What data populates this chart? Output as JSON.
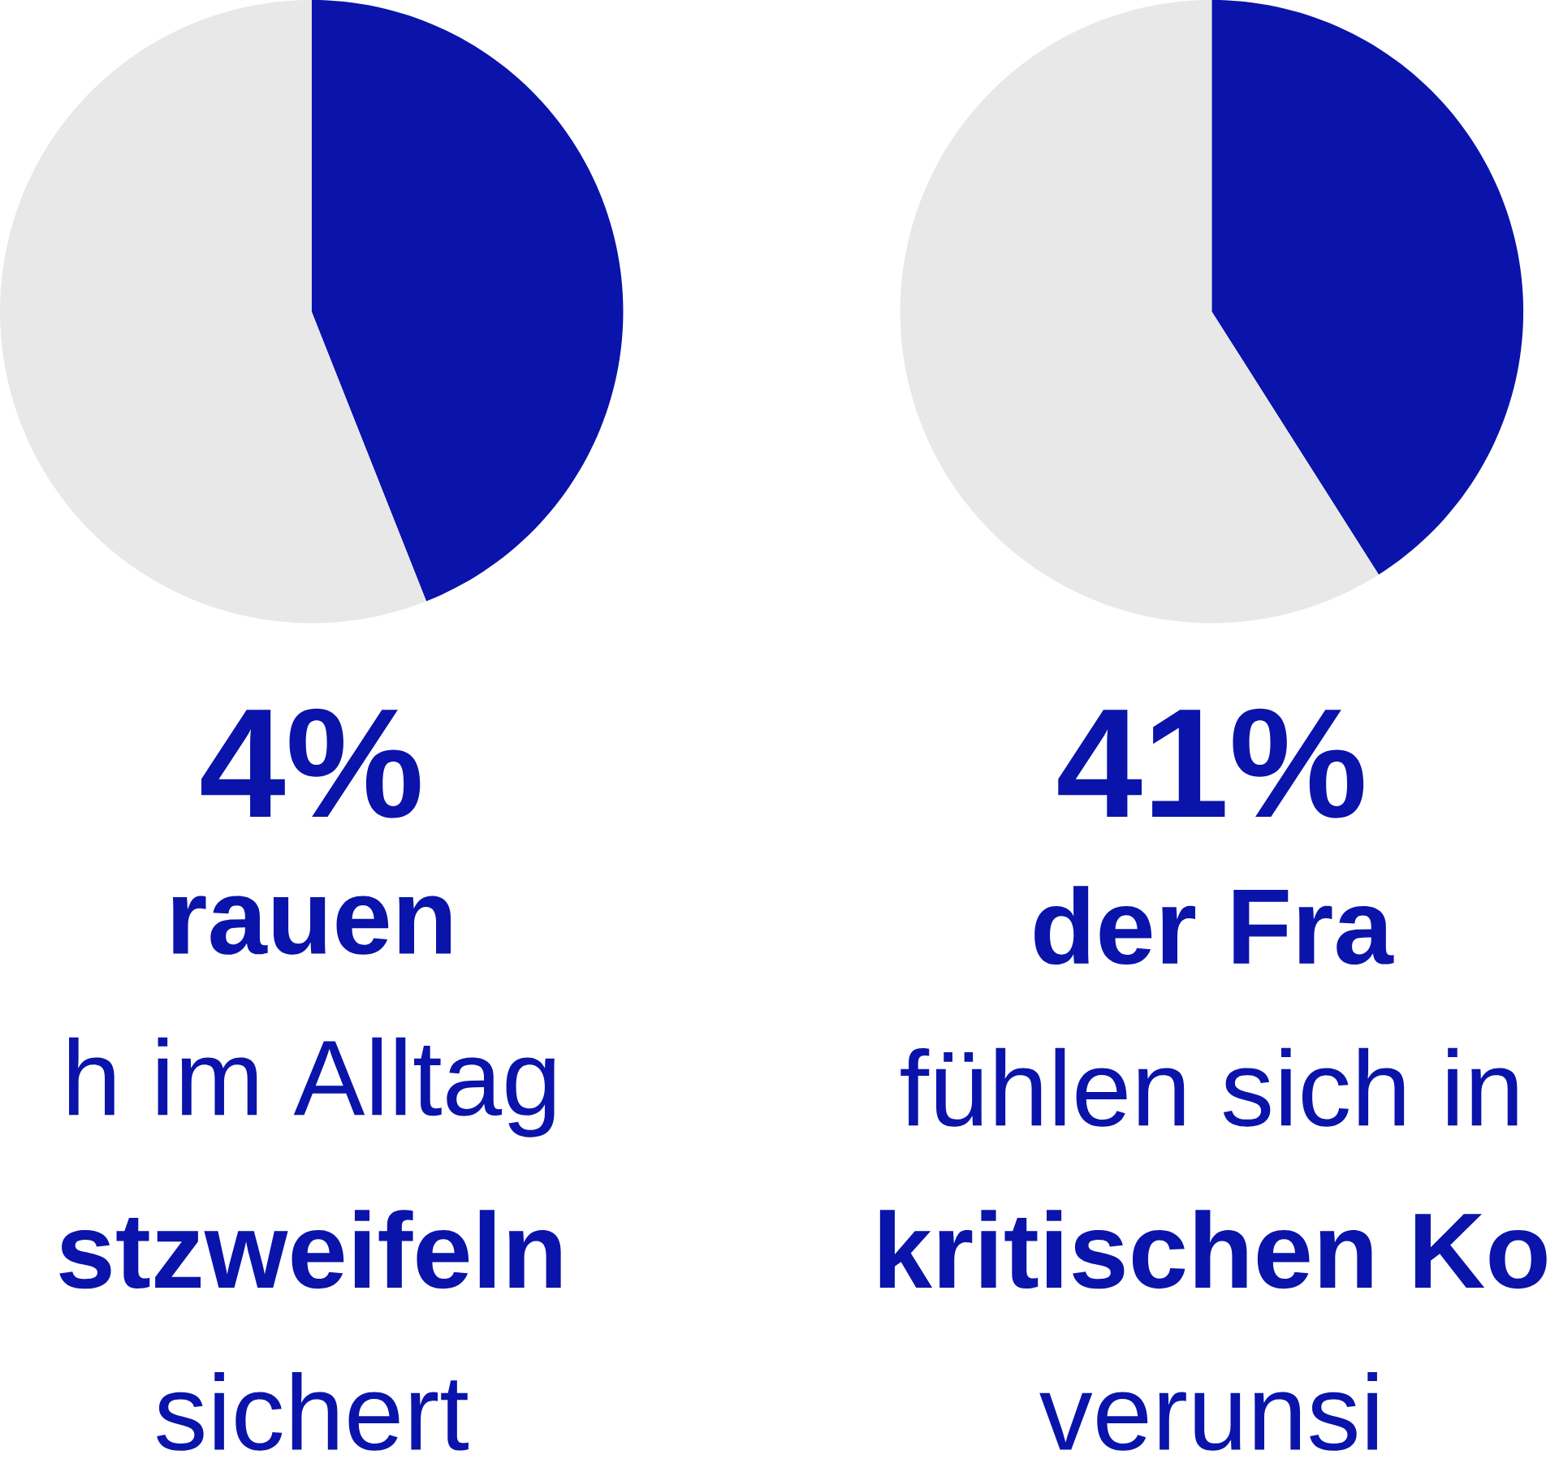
{
  "chart_data": [
    {
      "type": "pie",
      "categories": [
        null,
        null
      ],
      "values": [
        44,
        56
      ],
      "colors": [
        "#0a14aa",
        "#e8e8e8"
      ],
      "annotations": [
        "4%",
        "rauen",
        "h im Alltag",
        "stzweifeln",
        "sichert"
      ]
    },
    {
      "type": "pie",
      "categories": [
        null,
        null
      ],
      "values": [
        41,
        59
      ],
      "colors": [
        "#0a14aa",
        "#e8e8e8"
      ],
      "annotations": [
        "41%",
        "der Fra",
        "fühlen sich in",
        "kritischen Ko",
        "verunsi"
      ]
    }
  ]
}
